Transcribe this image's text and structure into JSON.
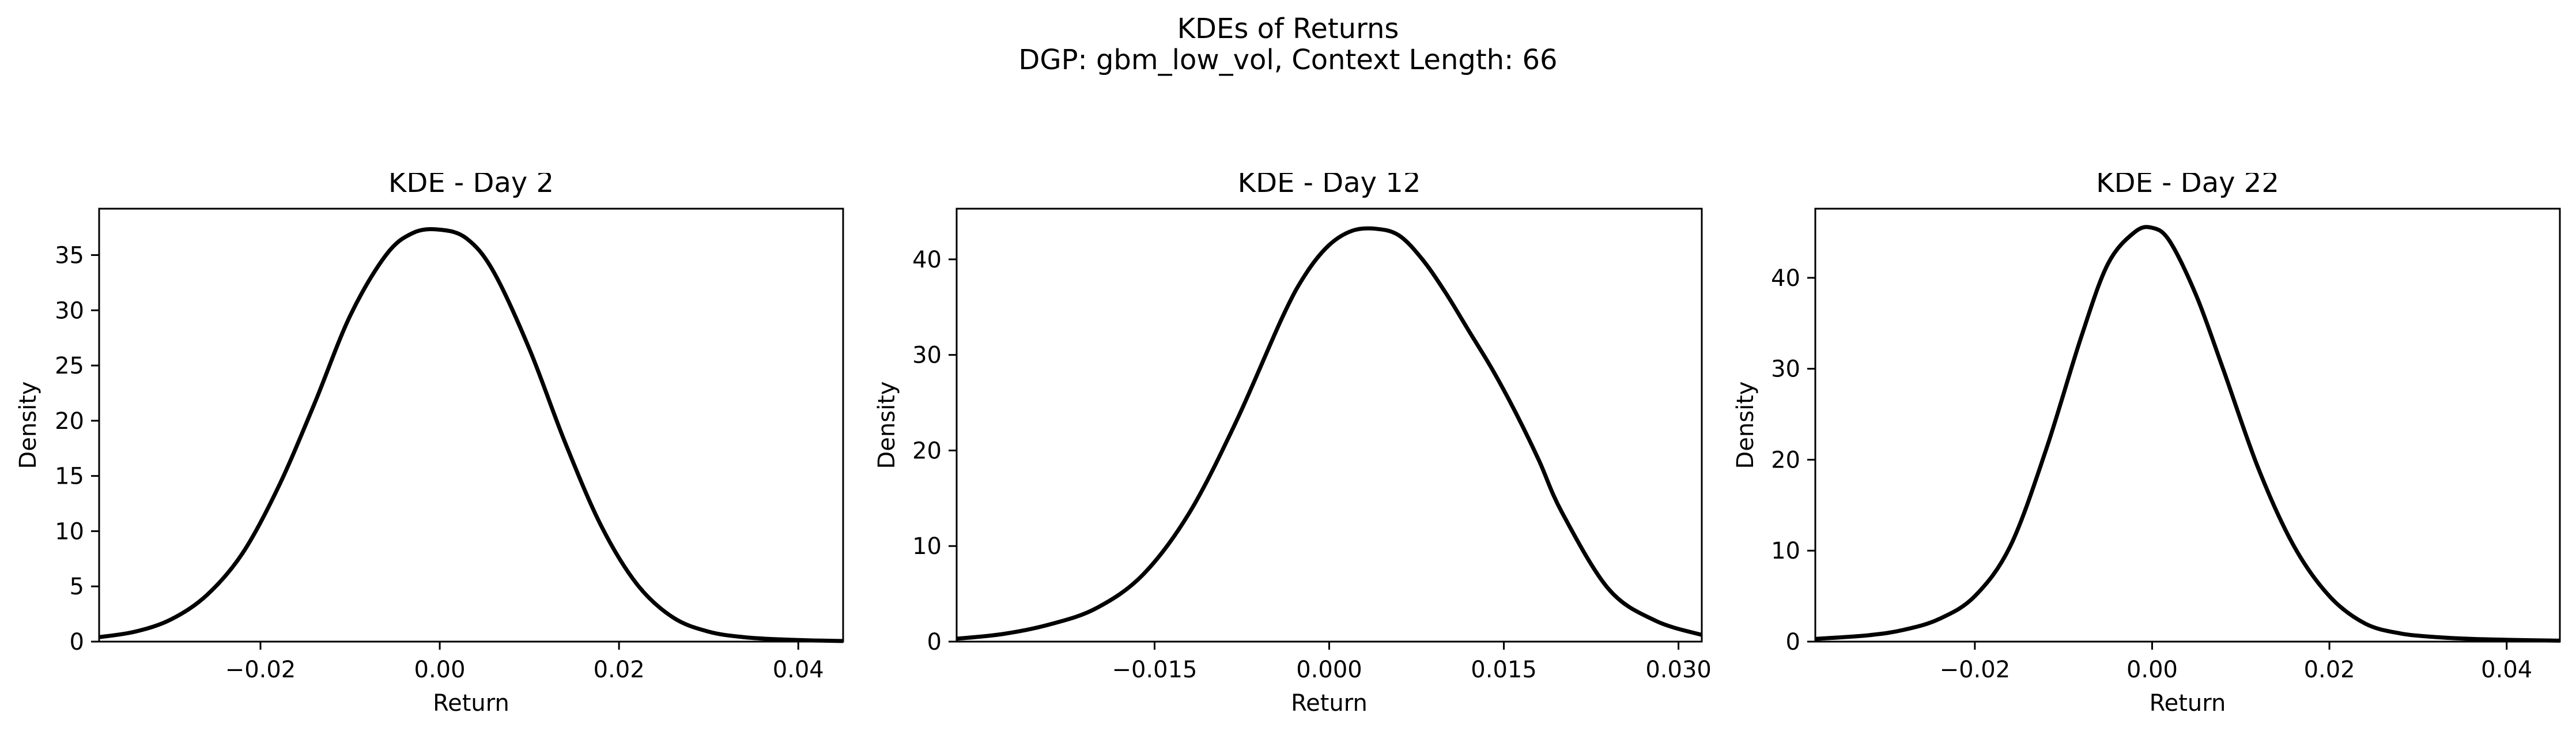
{
  "figure": {
    "title_line1": "KDEs of Returns",
    "title_line2": "DGP: gbm_low_vol, Context Length: 66"
  },
  "chart_data": [
    {
      "type": "line",
      "title": "KDE - Day 2",
      "xlabel": "Return",
      "ylabel": "Density",
      "xlim": [
        -0.038,
        0.045
      ],
      "ylim": [
        0,
        39.2
      ],
      "xticks": [
        -0.02,
        0.0,
        0.02,
        0.04
      ],
      "xticklabels": [
        "−0.02",
        "0.00",
        "0.02",
        "0.04"
      ],
      "yticks": [
        0,
        5,
        10,
        15,
        20,
        25,
        30,
        35
      ],
      "yticklabels": [
        "0",
        "5",
        "10",
        "15",
        "20",
        "25",
        "30",
        "35"
      ],
      "grid": false,
      "line_color": "#000000",
      "series": [
        {
          "x": [
            -0.038,
            -0.034,
            -0.03,
            -0.026,
            -0.022,
            -0.018,
            -0.014,
            -0.01,
            -0.006,
            -0.003,
            0.0,
            0.003,
            0.006,
            0.01,
            0.014,
            0.018,
            0.022,
            0.026,
            0.03,
            0.034,
            0.038,
            0.042,
            0.045
          ],
          "y": [
            0.4,
            0.9,
            2.0,
            4.2,
            8.0,
            14.0,
            21.5,
            29.5,
            35.0,
            37.0,
            37.3,
            36.5,
            33.5,
            26.5,
            18.0,
            10.5,
            5.2,
            2.2,
            0.9,
            0.4,
            0.2,
            0.1,
            0.05
          ]
        }
      ]
    },
    {
      "type": "line",
      "title": "KDE - Day 12",
      "xlabel": "Return",
      "ylabel": "Density",
      "xlim": [
        -0.032,
        0.032
      ],
      "ylim": [
        0,
        45.3
      ],
      "xticks": [
        -0.015,
        0.0,
        0.015,
        0.03
      ],
      "xticklabels": [
        "−0.015",
        "0.000",
        "0.015",
        "0.030"
      ],
      "yticks": [
        0,
        10,
        20,
        30,
        40
      ],
      "yticklabels": [
        "0",
        "10",
        "20",
        "30",
        "40"
      ],
      "grid": false,
      "line_color": "#000000",
      "series": [
        {
          "x": [
            -0.032,
            -0.028,
            -0.024,
            -0.02,
            -0.016,
            -0.012,
            -0.008,
            -0.004,
            -0.002,
            0.0,
            0.002,
            0.004,
            0.006,
            0.008,
            0.01,
            0.012,
            0.014,
            0.016,
            0.018,
            0.02,
            0.024,
            0.028,
            0.032
          ],
          "y": [
            0.3,
            0.8,
            1.8,
            3.5,
            7.0,
            13.5,
            23.0,
            34.0,
            38.5,
            41.5,
            43.0,
            43.2,
            42.5,
            40.0,
            36.5,
            32.5,
            28.5,
            24.0,
            19.0,
            13.5,
            5.5,
            2.2,
            0.7
          ]
        }
      ]
    },
    {
      "type": "line",
      "title": "KDE - Day 22",
      "xlabel": "Return",
      "ylabel": "Density",
      "xlim": [
        -0.038,
        0.046
      ],
      "ylim": [
        0,
        47.6
      ],
      "xticks": [
        -0.02,
        0.0,
        0.02,
        0.04
      ],
      "xticklabels": [
        "−0.02",
        "0.00",
        "0.02",
        "0.04"
      ],
      "yticks": [
        0,
        10,
        20,
        30,
        40
      ],
      "yticklabels": [
        "0",
        "10",
        "20",
        "30",
        "40"
      ],
      "grid": false,
      "line_color": "#000000",
      "series": [
        {
          "x": [
            -0.038,
            -0.032,
            -0.028,
            -0.024,
            -0.02,
            -0.016,
            -0.012,
            -0.008,
            -0.005,
            -0.002,
            0.0,
            0.002,
            0.005,
            0.008,
            0.012,
            0.016,
            0.02,
            0.024,
            0.028,
            0.032,
            0.036,
            0.04,
            0.046
          ],
          "y": [
            0.3,
            0.7,
            1.3,
            2.5,
            5.0,
            10.5,
            21.0,
            33.5,
            41.5,
            45.0,
            45.5,
            44.0,
            38.0,
            30.0,
            19.0,
            10.5,
            5.0,
            2.0,
            0.9,
            0.5,
            0.3,
            0.2,
            0.1
          ]
        }
      ]
    }
  ]
}
